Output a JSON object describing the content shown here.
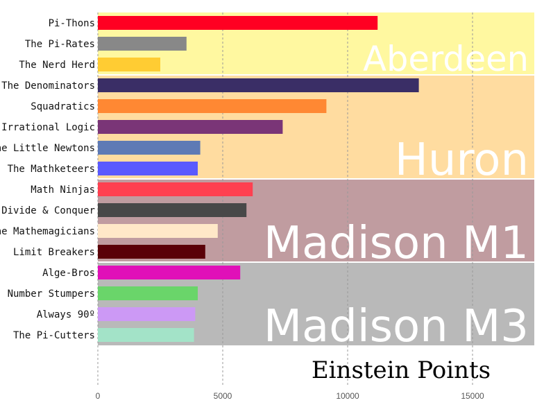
{
  "chart_data": {
    "type": "bar",
    "orientation": "horizontal",
    "xlabel": "Einstein Points",
    "ylabel": "",
    "xlim": [
      0,
      17500
    ],
    "xticks": [
      0,
      5000,
      10000,
      15000
    ],
    "grid": true,
    "groups": [
      {
        "name": "Aberdeen",
        "band_color": "#FFF8A0",
        "bars": [
          {
            "label": "Pi-Thons",
            "value": 11200,
            "color": "#FF0022"
          },
          {
            "label": "The Pi-Rates",
            "value": 3550,
            "color": "#888888"
          },
          {
            "label": "The Nerd Herd",
            "value": 2500,
            "color": "#FFCC33"
          }
        ]
      },
      {
        "name": "Huron",
        "band_color": "#FFDCA0",
        "bars": [
          {
            "label": "The Denominators",
            "value": 12850,
            "color": "#3A2E66"
          },
          {
            "label": "Squadratics",
            "value": 9150,
            "color": "#FF8833"
          },
          {
            "label": "Irrational Logic",
            "value": 7400,
            "color": "#7A3577"
          },
          {
            "label": "The Little Newtons",
            "value": 4100,
            "color": "#5E7AB5"
          },
          {
            "label": "The Mathketeers",
            "value": 4000,
            "color": "#5A5AFF"
          }
        ]
      },
      {
        "name": "Madison M1",
        "band_color": "#C09CA0",
        "bars": [
          {
            "label": "Math Ninjas",
            "value": 6200,
            "color": "#FF4050"
          },
          {
            "label": "Divide & Conquer",
            "value": 5950,
            "color": "#484848"
          },
          {
            "label": "The Mathemagicians",
            "value": 4800,
            "color": "#FFE8C8"
          },
          {
            "label": "Limit Breakers",
            "value": 4300,
            "color": "#5A0008"
          }
        ]
      },
      {
        "name": "Madison M3",
        "band_color": "#B9B9B9",
        "bars": [
          {
            "label": "Alge-Bros",
            "value": 5700,
            "color": "#E010B8"
          },
          {
            "label": "Number Stumpers",
            "value": 4000,
            "color": "#6AD56A"
          },
          {
            "label": "Always 90º",
            "value": 3900,
            "color": "#CC99F5"
          },
          {
            "label": "The Pi-Cutters",
            "value": 3850,
            "color": "#A3E3C8"
          }
        ]
      }
    ]
  }
}
